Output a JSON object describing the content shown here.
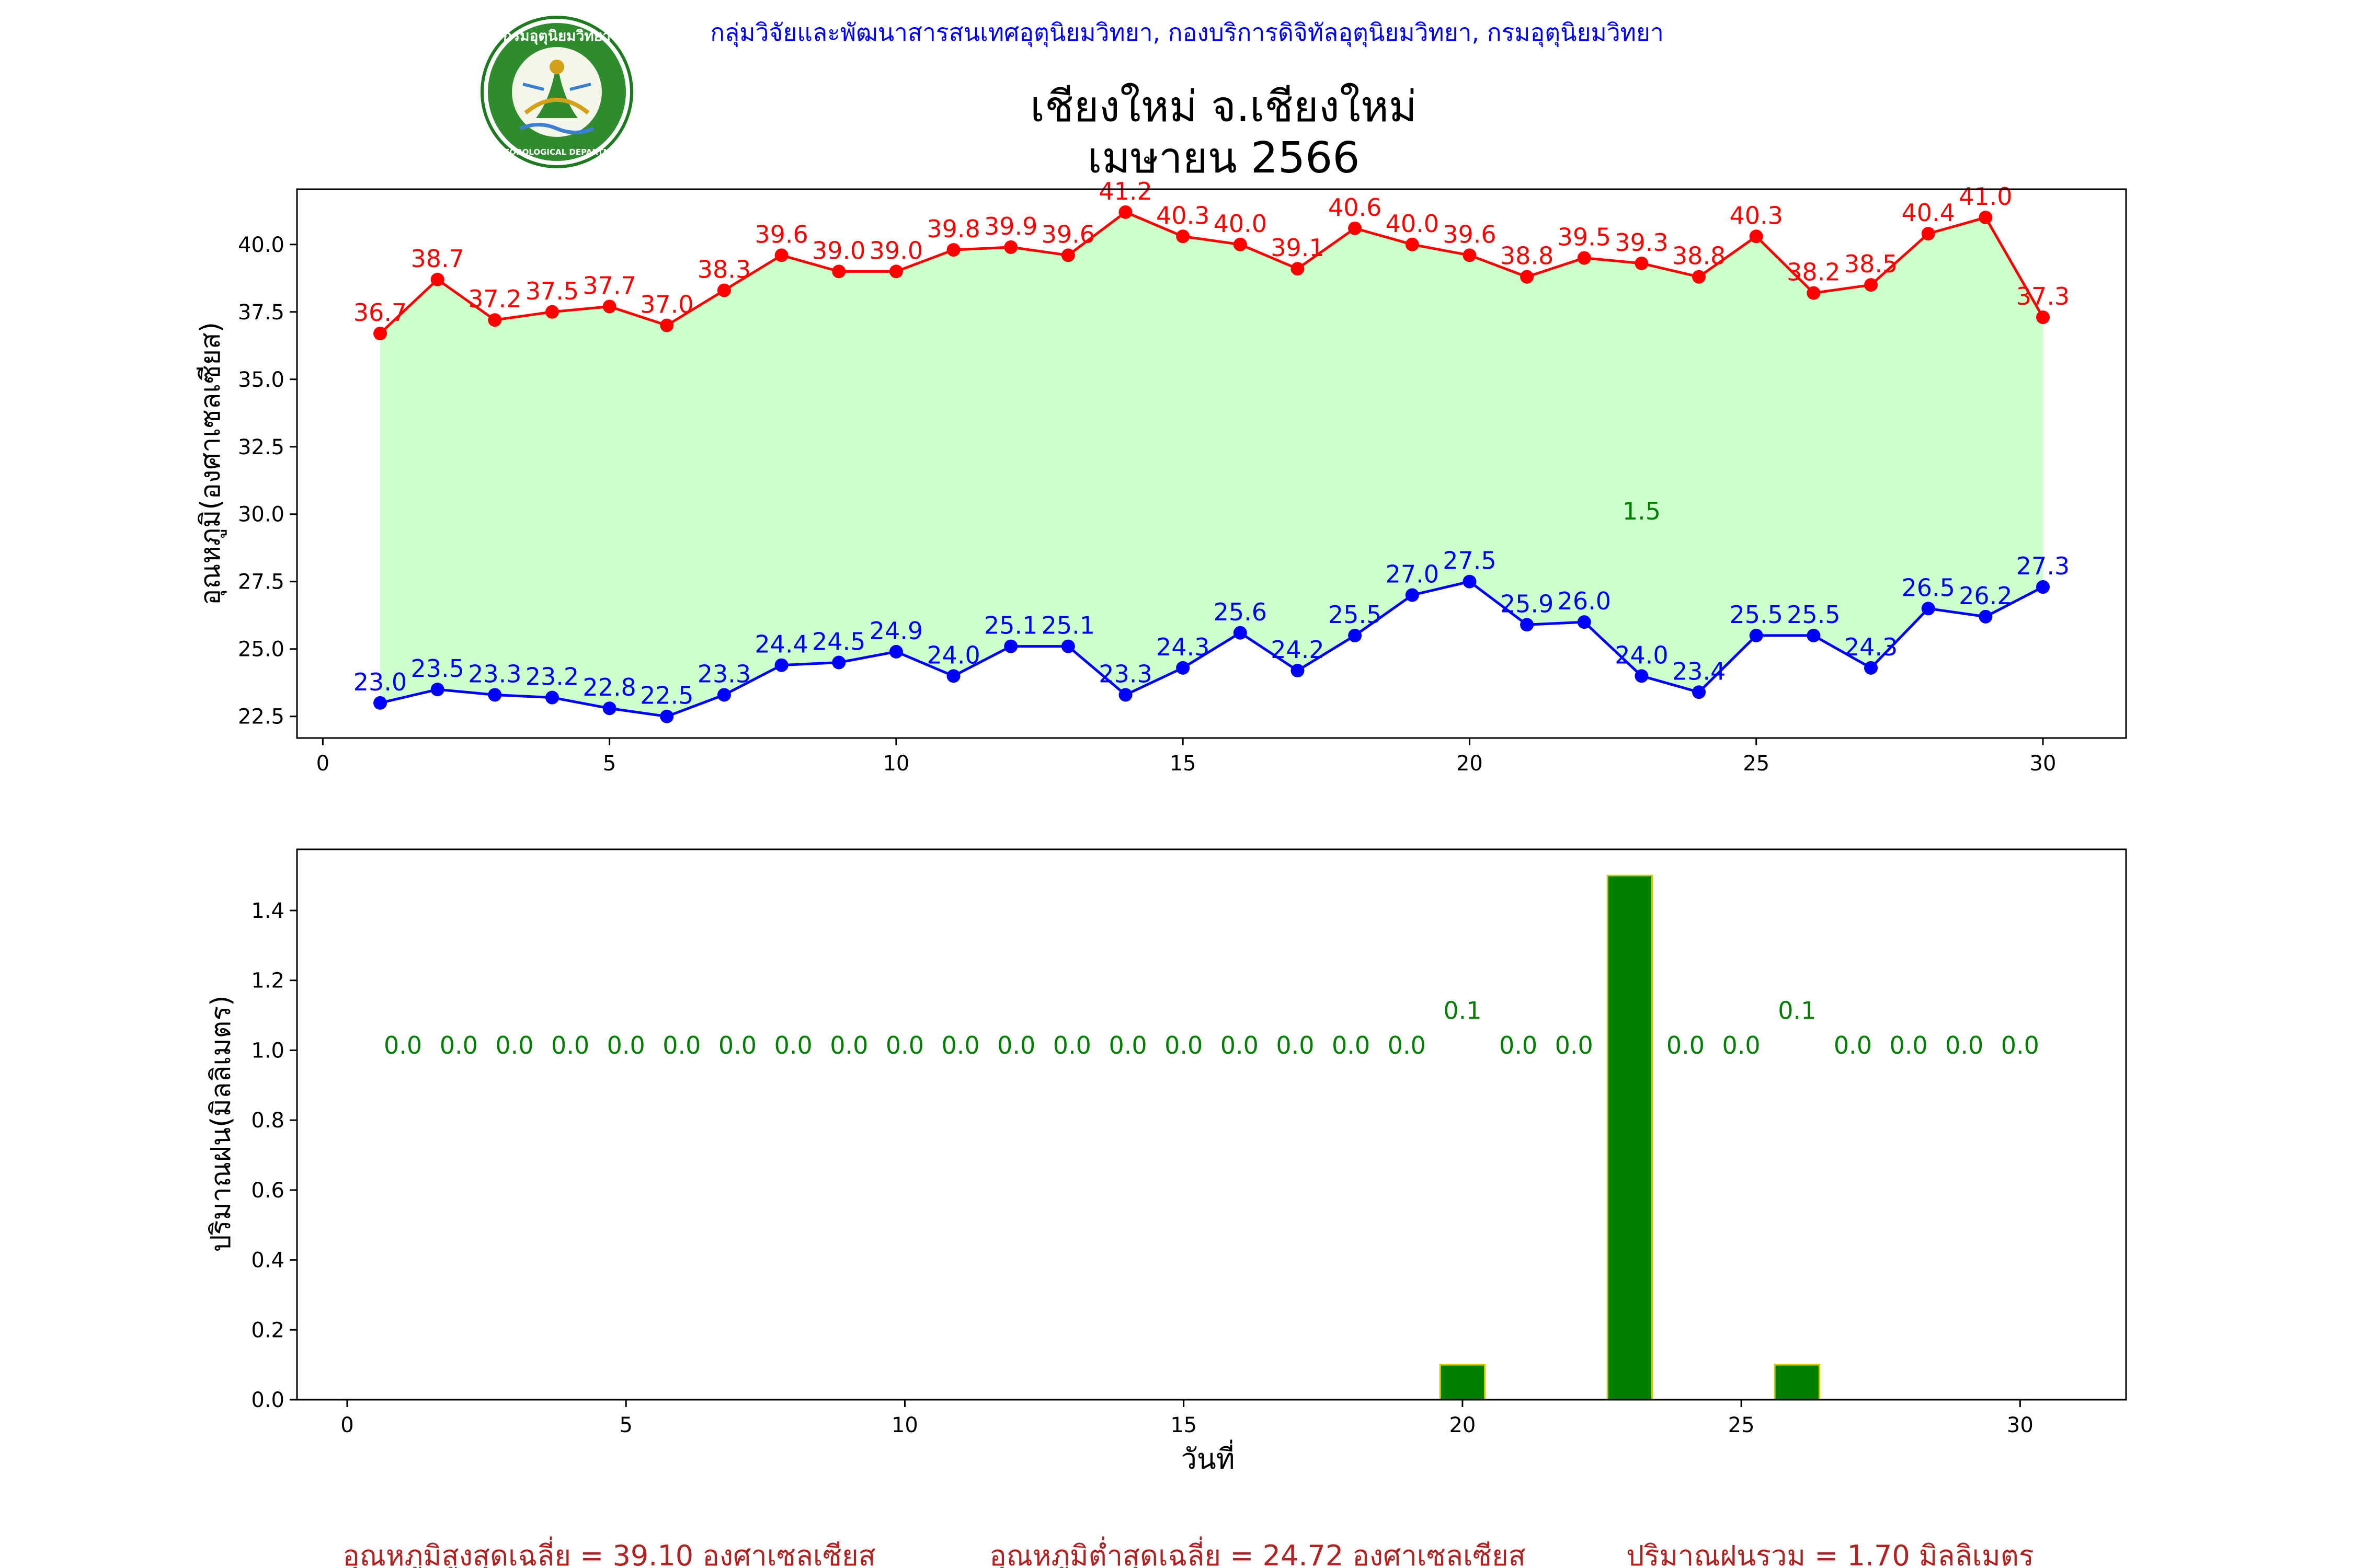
{
  "header": {
    "organization": "กลุ่มวิจัยและพัฒนาสารสนเทศอุตุนิยมวิทยา, กองบริการดิจิทัลอุตุนิยมวิทยา, กรมอุตุนิยมวิทยา",
    "title_line1": "เชียงใหม่ จ.เชียงใหม่",
    "title_line2": "เมษายน 2566",
    "logo_text_top": "กรมอุตุนิยมวิทยา",
    "logo_text_bottom": "METEOROLOGICAL DEPARTMENT"
  },
  "footer": {
    "avg_max": "อุณหภูมิสูงสุดเฉลี่ย = 39.10 องศาเซลเซียส",
    "avg_min": "อุณหภูมิต่ำสุดเฉลี่ย = 24.72 องศาเซลเซียส",
    "total_rain": "ปริมาณฝนรวม = 1.70 มิลลิเมตร"
  },
  "colors": {
    "header_text": "#0000ff",
    "max_line": "#ff0000",
    "min_line": "#0000ff",
    "fill": "#ccffcc",
    "rain_bar": "#008000",
    "rain_bar_edge": "#cccc00",
    "rain_label": "#008000",
    "footer_text": "#b22222"
  },
  "chart_data": [
    {
      "type": "line",
      "ylabel": "อุณหภูมิ(องศาเซลเซียส)",
      "xlim": [
        -0.45,
        31.45
      ],
      "ylim": [
        21.7,
        42.05
      ],
      "xticks": [
        0,
        5,
        10,
        15,
        20,
        25,
        30
      ],
      "yticks": [
        "22.5",
        "25.0",
        "27.5",
        "30.0",
        "32.5",
        "35.0",
        "37.5",
        "40.0"
      ],
      "x": [
        1,
        2,
        3,
        4,
        5,
        6,
        7,
        8,
        9,
        10,
        11,
        12,
        13,
        14,
        15,
        16,
        17,
        18,
        19,
        20,
        21,
        22,
        23,
        24,
        25,
        26,
        27,
        28,
        29,
        30
      ],
      "series": [
        {
          "role": "max",
          "values": [
            36.7,
            38.7,
            37.2,
            37.5,
            37.7,
            37.0,
            38.3,
            39.6,
            39.0,
            39.0,
            39.8,
            39.9,
            39.6,
            41.2,
            40.3,
            40.0,
            39.1,
            40.6,
            40.0,
            39.6,
            38.8,
            39.5,
            39.3,
            38.8,
            40.3,
            38.2,
            38.5,
            40.4,
            41.0,
            37.3
          ]
        },
        {
          "role": "min",
          "values": [
            23.0,
            23.5,
            23.3,
            23.2,
            22.8,
            22.5,
            23.3,
            24.4,
            24.5,
            24.9,
            24.0,
            25.1,
            25.1,
            23.3,
            24.3,
            25.6,
            24.2,
            25.5,
            27.0,
            27.5,
            25.9,
            26.0,
            24.0,
            23.4,
            25.5,
            25.5,
            24.3,
            26.5,
            26.2,
            27.3
          ]
        }
      ],
      "annotation": {
        "text": "1.5",
        "x": 23,
        "y": 29.8
      }
    },
    {
      "type": "bar",
      "xlabel": "วันที่",
      "ylabel": "ปริมาณฝน(มิลลิเมตร)",
      "xlim": [
        -0.9,
        31.9
      ],
      "ylim": [
        0,
        1.575
      ],
      "xticks": [
        0,
        5,
        10,
        15,
        20,
        25,
        30
      ],
      "yticks": [
        "0.0",
        "0.2",
        "0.4",
        "0.6",
        "0.8",
        "1.0",
        "1.2",
        "1.4"
      ],
      "x": [
        1,
        2,
        3,
        4,
        5,
        6,
        7,
        8,
        9,
        10,
        11,
        12,
        13,
        14,
        15,
        16,
        17,
        18,
        19,
        20,
        21,
        22,
        23,
        24,
        25,
        26,
        27,
        28,
        29,
        30
      ],
      "values": [
        0,
        0,
        0,
        0,
        0,
        0,
        0,
        0,
        0,
        0,
        0,
        0,
        0,
        0,
        0,
        0,
        0,
        0,
        0,
        0.1,
        0,
        0,
        1.5,
        0,
        0,
        0.1,
        0,
        0,
        0,
        0
      ],
      "bar_labels": [
        "0.0",
        "0.0",
        "0.0",
        "0.0",
        "0.0",
        "0.0",
        "0.0",
        "0.0",
        "0.0",
        "0.0",
        "0.0",
        "0.0",
        "0.0",
        "0.0",
        "0.0",
        "0.0",
        "0.0",
        "0.0",
        "0.0",
        "0.1",
        "0.0",
        "0.0",
        "",
        "0.0",
        "0.0",
        "0.1",
        "0.0",
        "0.0",
        "0.0",
        "0.0"
      ]
    }
  ]
}
